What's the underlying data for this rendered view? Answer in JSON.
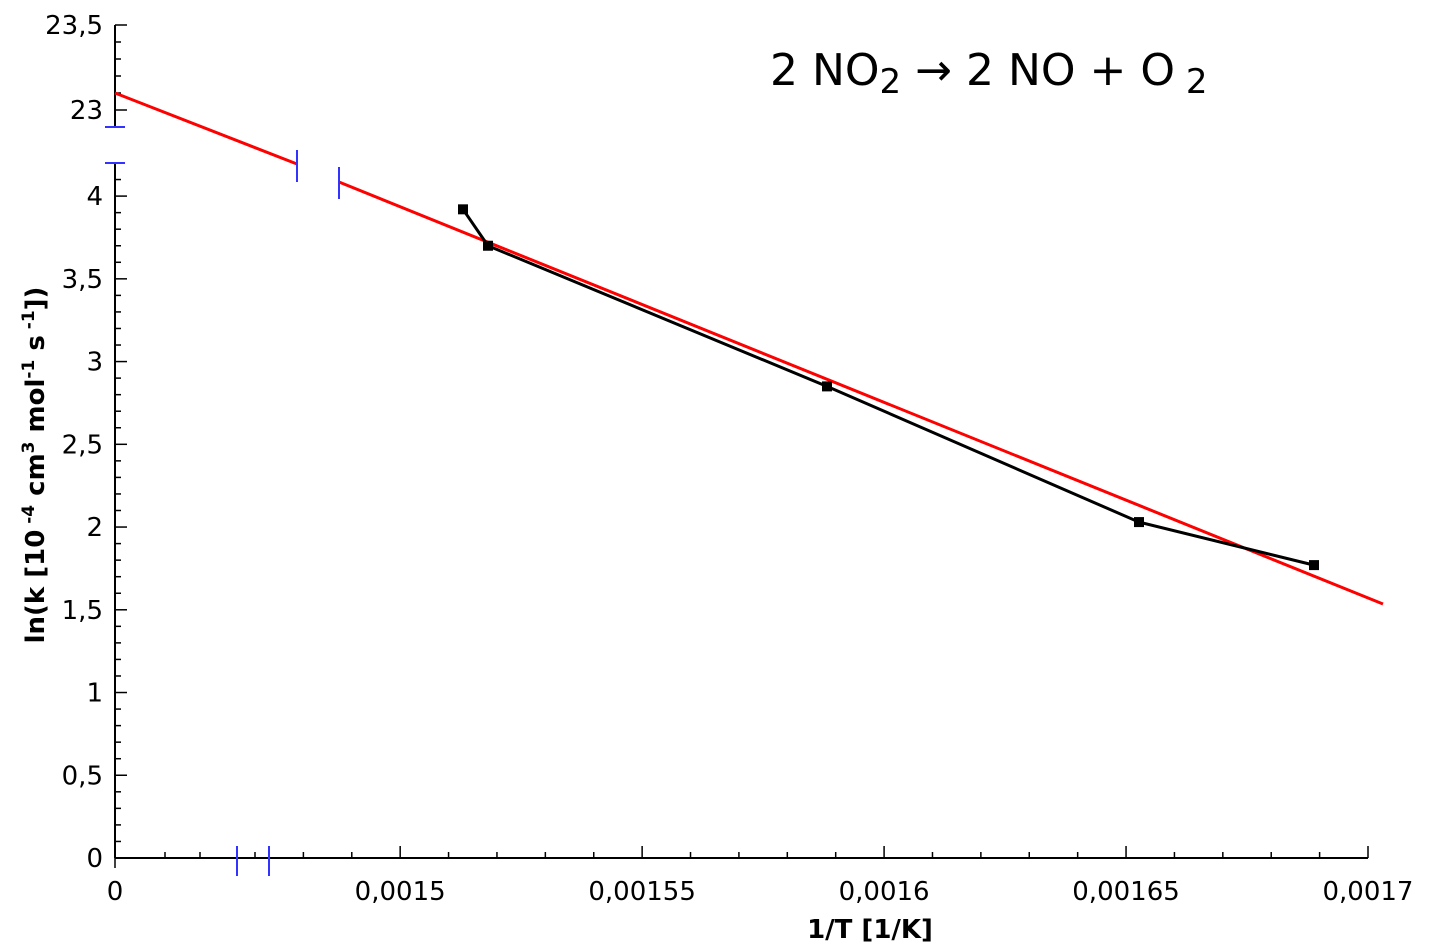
{
  "chart_data": {
    "type": "line",
    "title": "",
    "reaction": {
      "parts": [
        {
          "text": "2 NO",
          "baseline": "normal"
        },
        {
          "text": "2",
          "baseline": "sub"
        },
        {
          "text": " → 2 NO + O",
          "baseline": "normal"
        },
        {
          "text": " 2",
          "baseline": "sub"
        }
      ]
    },
    "xlabel": "1/T [1/K]",
    "ylabel": {
      "parts": [
        {
          "text": "ln(k [10",
          "baseline": "normal"
        },
        {
          "text": " -4",
          "baseline": "super"
        },
        {
          "text": " cm",
          "baseline": "normal"
        },
        {
          "text": "3",
          "baseline": "super"
        },
        {
          "text": " mol",
          "baseline": "normal"
        },
        {
          "text": "-1",
          "baseline": "super"
        },
        {
          "text": " s",
          "baseline": "normal"
        },
        {
          "text": " -1",
          "baseline": "super"
        },
        {
          "text": "])",
          "baseline": "normal"
        }
      ]
    },
    "x_axis": {
      "broken": true,
      "range": [
        0.00147,
        0.0017
      ],
      "tick_labels": [
        {
          "value": 0,
          "label": "0"
        },
        {
          "value": 0.0015,
          "label": "0,0015"
        },
        {
          "value": 0.00155,
          "label": "0,00155"
        },
        {
          "value": 0.0016,
          "label": "0,0016"
        },
        {
          "value": 0.00165,
          "label": "0,00165"
        },
        {
          "value": 0.0017,
          "label": "0,0017"
        }
      ]
    },
    "y_axis": {
      "broken": true,
      "range_lower": [
        0,
        4.2
      ],
      "range_upper": [
        22.9,
        23.5
      ],
      "tick_labels": [
        {
          "value": 0,
          "label": "0"
        },
        {
          "value": 0.5,
          "label": "0,5"
        },
        {
          "value": 1,
          "label": "1"
        },
        {
          "value": 1.5,
          "label": "1,5"
        },
        {
          "value": 2,
          "label": "2"
        },
        {
          "value": 2.5,
          "label": "2,5"
        },
        {
          "value": 3,
          "label": "3"
        },
        {
          "value": 3.5,
          "label": "3,5"
        },
        {
          "value": 4,
          "label": "4"
        },
        {
          "value": 23,
          "label": "23"
        },
        {
          "value": 23.5,
          "label": "23,5"
        }
      ]
    },
    "grid": false,
    "series": [
      {
        "type": "line",
        "marker": "square",
        "color": "#000000",
        "x": [
          0.001537,
          0.001539,
          0.001573,
          0.001604,
          0.001622
        ],
        "y": [
          3.92,
          3.7,
          2.85,
          2.03,
          1.77
        ]
      },
      {
        "type": "fit-line",
        "color": "#ff0000",
        "x": [
          0.00147,
          0.0017
        ],
        "y": [
          23.1,
          1.54
        ]
      }
    ],
    "colors": {
      "axis": "#000000",
      "axis_break": "#3333ff",
      "data": "#000000",
      "fit": "#ff0000"
    }
  }
}
